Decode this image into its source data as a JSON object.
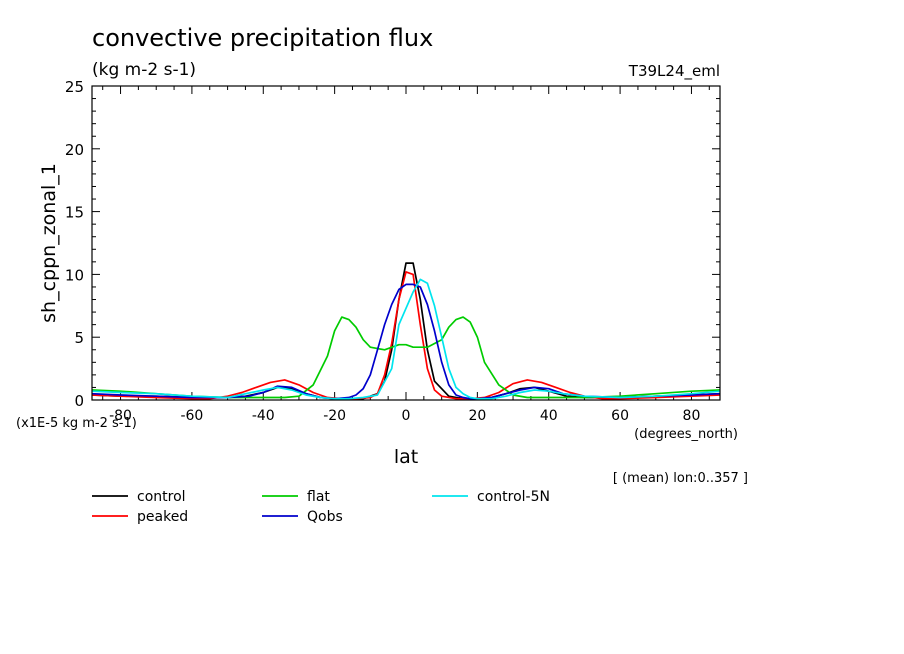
{
  "title": "convective precipitation flux",
  "units": "(kg m-2 s-1)",
  "experiment": "T39L24_eml",
  "scale_note": "(x1E-5 kg m-2 s-1)",
  "footer_note": "[ (mean) lon:0..357 ]",
  "colors": {
    "control": "#000000",
    "peaked": "#ff0000",
    "flat": "#00cc00",
    "qobs": "#0000cc",
    "control5n": "#00e5ee"
  },
  "chart_data": {
    "type": "line",
    "title": "convective precipitation flux",
    "xlabel": "lat",
    "xunits": "(degrees_north)",
    "ylabel": "sh_cppn_zonal_1",
    "xlim": [
      -88,
      88
    ],
    "ylim": [
      0,
      25
    ],
    "xticks": [
      -80,
      -60,
      -40,
      -20,
      0,
      20,
      40,
      60,
      80
    ],
    "yticks": [
      0,
      5,
      10,
      15,
      20,
      25
    ],
    "legend": "below",
    "series": [
      {
        "name": "control",
        "key": "control",
        "x": [
          -88,
          -80,
          -70,
          -60,
          -50,
          -45,
          -40,
          -36,
          -32,
          -28,
          -24,
          -20,
          -16,
          -12,
          -8,
          -6,
          -4,
          -2,
          0,
          2,
          4,
          6,
          8,
          12,
          16,
          20,
          24,
          28,
          32,
          36,
          40,
          45,
          50,
          60,
          70,
          80,
          88
        ],
        "y": [
          0.4,
          0.3,
          0.3,
          0.2,
          0.2,
          0.3,
          0.6,
          1.0,
          0.9,
          0.5,
          0.2,
          0.1,
          0.1,
          0.1,
          0.5,
          1.5,
          4.0,
          8.0,
          10.9,
          10.9,
          8.0,
          4.0,
          1.5,
          0.3,
          0.1,
          0.1,
          0.2,
          0.5,
          0.9,
          1.0,
          0.7,
          0.3,
          0.2,
          0.2,
          0.3,
          0.4,
          0.5
        ]
      },
      {
        "name": "peaked",
        "key": "peaked",
        "x": [
          -88,
          -80,
          -70,
          -60,
          -55,
          -50,
          -46,
          -42,
          -38,
          -34,
          -30,
          -26,
          -22,
          -18,
          -14,
          -10,
          -8,
          -6,
          -4,
          -2,
          0,
          2,
          4,
          6,
          8,
          10,
          14,
          18,
          22,
          26,
          30,
          34,
          38,
          42,
          46,
          50,
          55,
          60,
          70,
          80,
          88
        ],
        "y": [
          0.4,
          0.3,
          0.2,
          0.1,
          0.1,
          0.3,
          0.6,
          1.0,
          1.4,
          1.6,
          1.2,
          0.6,
          0.2,
          0.1,
          0.1,
          0.2,
          0.5,
          2.0,
          4.5,
          8.0,
          10.2,
          10.0,
          6.0,
          2.5,
          0.8,
          0.3,
          0.1,
          0.1,
          0.2,
          0.6,
          1.3,
          1.6,
          1.4,
          1.0,
          0.6,
          0.3,
          0.1,
          0.1,
          0.2,
          0.3,
          0.4
        ]
      },
      {
        "name": "flat",
        "key": "flat",
        "x": [
          -88,
          -80,
          -70,
          -60,
          -50,
          -40,
          -34,
          -30,
          -26,
          -22,
          -20,
          -18,
          -16,
          -14,
          -12,
          -10,
          -6,
          -2,
          0,
          2,
          6,
          10,
          12,
          14,
          16,
          18,
          20,
          22,
          26,
          30,
          34,
          40,
          50,
          60,
          70,
          80,
          88
        ],
        "y": [
          0.8,
          0.7,
          0.5,
          0.3,
          0.2,
          0.2,
          0.2,
          0.3,
          1.2,
          3.5,
          5.5,
          6.6,
          6.4,
          5.8,
          4.8,
          4.2,
          4.0,
          4.4,
          4.4,
          4.2,
          4.2,
          4.8,
          5.8,
          6.4,
          6.6,
          6.2,
          5.0,
          3.0,
          1.2,
          0.4,
          0.2,
          0.2,
          0.2,
          0.3,
          0.5,
          0.7,
          0.8
        ]
      },
      {
        "name": "Qobs",
        "key": "qobs",
        "x": [
          -88,
          -80,
          -70,
          -60,
          -50,
          -44,
          -40,
          -36,
          -32,
          -28,
          -24,
          -20,
          -16,
          -14,
          -12,
          -10,
          -8,
          -6,
          -4,
          -2,
          0,
          2,
          4,
          6,
          8,
          10,
          12,
          14,
          16,
          18,
          20,
          24,
          28,
          32,
          36,
          40,
          44,
          50,
          60,
          70,
          80,
          88
        ],
        "y": [
          0.5,
          0.4,
          0.3,
          0.2,
          0.2,
          0.3,
          0.6,
          1.1,
          1.0,
          0.5,
          0.2,
          0.1,
          0.2,
          0.4,
          0.9,
          2.0,
          4.0,
          6.0,
          7.6,
          8.8,
          9.2,
          9.2,
          9.0,
          7.6,
          5.5,
          3.0,
          1.2,
          0.4,
          0.2,
          0.1,
          0.1,
          0.2,
          0.5,
          0.8,
          1.0,
          0.9,
          0.5,
          0.3,
          0.2,
          0.3,
          0.4,
          0.5
        ]
      },
      {
        "name": "control-5N",
        "key": "control5n",
        "x": [
          -88,
          -80,
          -70,
          -60,
          -50,
          -40,
          -36,
          -32,
          -28,
          -24,
          -20,
          -16,
          -12,
          -8,
          -4,
          -2,
          0,
          2,
          4,
          6,
          8,
          10,
          12,
          14,
          16,
          18,
          20,
          24,
          28,
          32,
          36,
          40,
          44,
          50,
          60,
          70,
          80,
          88
        ],
        "y": [
          0.7,
          0.6,
          0.5,
          0.3,
          0.2,
          0.8,
          1.0,
          0.8,
          0.4,
          0.2,
          0.1,
          0.1,
          0.2,
          0.4,
          2.5,
          6.0,
          7.3,
          8.6,
          9.6,
          9.3,
          7.5,
          5.0,
          2.5,
          1.0,
          0.5,
          0.2,
          0.1,
          0.1,
          0.3,
          0.6,
          0.8,
          0.7,
          0.5,
          0.3,
          0.2,
          0.3,
          0.5,
          0.7
        ]
      }
    ]
  }
}
